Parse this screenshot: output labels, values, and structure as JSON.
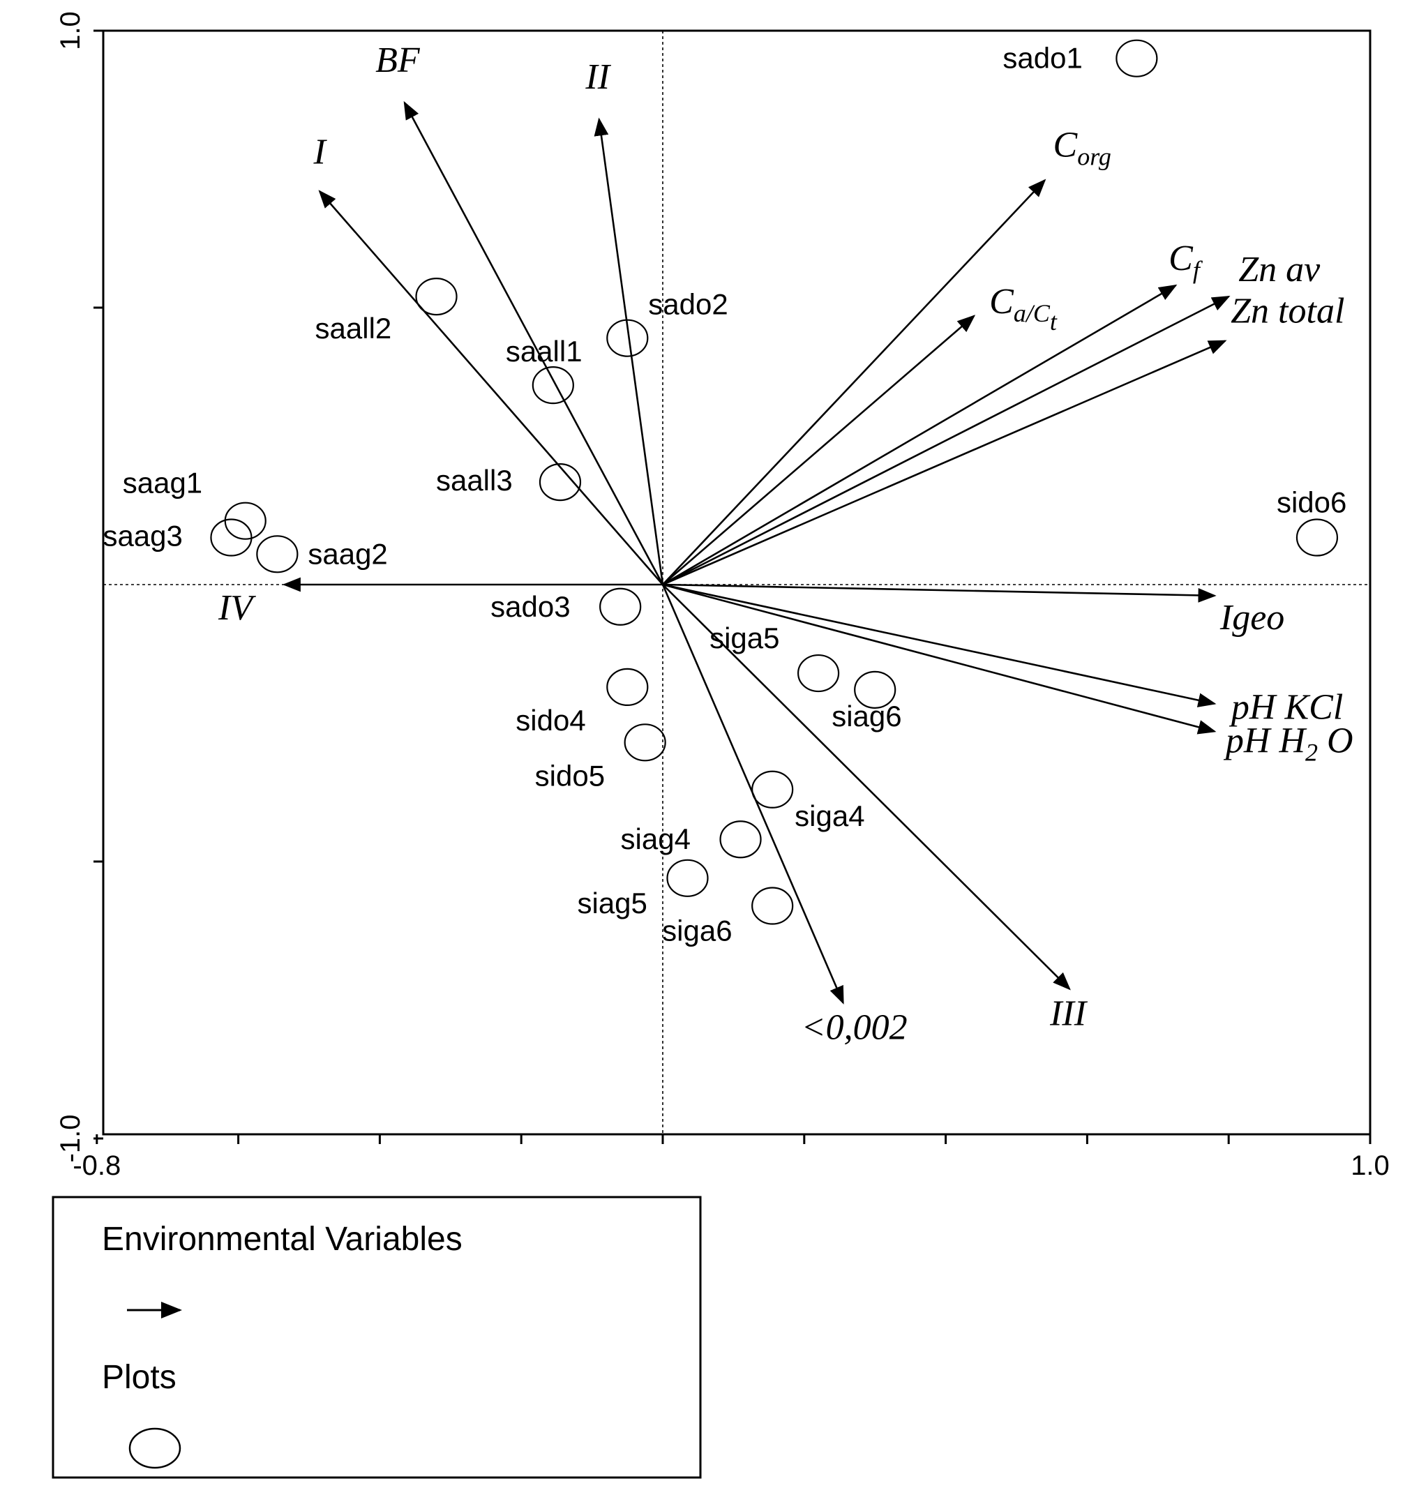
{
  "chart_data": {
    "type": "scatter",
    "title": "",
    "xlabel": "",
    "ylabel": "",
    "xlim": [
      -0.8,
      1.0
    ],
    "ylim": [
      -1.0,
      1.0
    ],
    "x_tick_labels": [
      {
        "value": -0.8,
        "label": "-0.8"
      },
      {
        "value": 1.0,
        "label": "1.0"
      }
    ],
    "y_tick_labels": [
      {
        "value": 1.0,
        "label": "1.0"
      },
      {
        "value": -1.0,
        "label": "-1.0"
      }
    ],
    "x_minor_ticks": [
      -0.6,
      -0.4,
      -0.2,
      0.0,
      0.2,
      0.4,
      0.6,
      0.8
    ],
    "y_minor_ticks": [
      0.5,
      -0.5
    ],
    "zero_lines": true,
    "grid": false,
    "series": [
      {
        "name": "Environmental Variables",
        "kind": "arrows",
        "points": [
          {
            "label": "I",
            "sub": "",
            "x": -0.485,
            "y": 0.71
          },
          {
            "label": "BF",
            "sub": "",
            "x": -0.365,
            "y": 0.87
          },
          {
            "label": "II",
            "sub": "",
            "x": -0.09,
            "y": 0.84
          },
          {
            "label": "C",
            "sub": "org",
            "x": 0.54,
            "y": 0.73
          },
          {
            "label": "C",
            "sub": "f",
            "x": 0.725,
            "y": 0.54
          },
          {
            "label": "C",
            "sub": "a/C",
            "sub2": "t",
            "x": 0.44,
            "y": 0.485
          },
          {
            "label": "Zn av",
            "sub": "",
            "x": 0.8,
            "y": 0.52
          },
          {
            "label": "Zn total",
            "sub": "",
            "x": 0.795,
            "y": 0.44
          },
          {
            "label": "IV",
            "sub": "",
            "x": -0.535,
            "y": 0.0
          },
          {
            "label": "Igeo",
            "sub": "",
            "x": 0.78,
            "y": -0.02
          },
          {
            "label": "pH KCl",
            "sub": "",
            "x": 0.78,
            "y": -0.215
          },
          {
            "label": "pH H",
            "sub": "2",
            "post": "O",
            "x": 0.78,
            "y": -0.265
          },
          {
            "label": "III",
            "sub": "",
            "x": 0.575,
            "y": -0.73
          },
          {
            "label": "<0,002",
            "sub": "",
            "x": 0.255,
            "y": -0.755
          }
        ]
      },
      {
        "name": "Plots",
        "kind": "circles",
        "points": [
          {
            "label": "sado1",
            "x": 0.67,
            "y": 0.95
          },
          {
            "label": "saall2",
            "x": -0.32,
            "y": 0.52
          },
          {
            "label": "sado2",
            "x": -0.05,
            "y": 0.445
          },
          {
            "label": "saall1",
            "x": -0.155,
            "y": 0.36
          },
          {
            "label": "saall3",
            "x": -0.145,
            "y": 0.185
          },
          {
            "label": "saag1",
            "x": -0.59,
            "y": 0.115
          },
          {
            "label": "saag3",
            "x": -0.61,
            "y": 0.085
          },
          {
            "label": "saag2",
            "x": -0.545,
            "y": 0.055
          },
          {
            "label": "sado3",
            "x": -0.06,
            "y": -0.04
          },
          {
            "label": "sido6",
            "x": 0.925,
            "y": 0.085
          },
          {
            "label": "siga5",
            "x": 0.22,
            "y": -0.16
          },
          {
            "label": "siag6",
            "x": 0.3,
            "y": -0.19
          },
          {
            "label": "sido4",
            "x": -0.05,
            "y": -0.185
          },
          {
            "label": "sido5",
            "x": -0.025,
            "y": -0.285
          },
          {
            "label": "siga4",
            "x": 0.155,
            "y": -0.37
          },
          {
            "label": "siag4",
            "x": 0.11,
            "y": -0.46
          },
          {
            "label": "siag5",
            "x": 0.035,
            "y": -0.53
          },
          {
            "label": "siga6",
            "x": 0.155,
            "y": -0.58
          }
        ]
      }
    ],
    "legend": {
      "placement": "bottom-left",
      "entries": [
        {
          "label": "Environmental Variables",
          "symbol": "arrow"
        },
        {
          "label": "Plots",
          "symbol": "circle"
        }
      ]
    }
  }
}
